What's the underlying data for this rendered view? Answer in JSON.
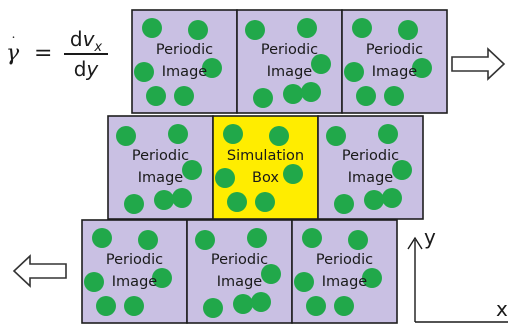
{
  "equation": {
    "lhs_symbol": "γ",
    "lhs_dot": "˙",
    "equals": "=",
    "num_d": "d",
    "num_v": "v",
    "num_sub": "x",
    "den_d": "d",
    "den_y": "y"
  },
  "cells": {
    "periodic_line1": "Periodic",
    "periodic_line2": "Image",
    "sim_line1": "Simulation",
    "sim_line2": "Box"
  },
  "axes": {
    "y": "y",
    "x": "x"
  },
  "colors": {
    "periodic_fill": "#c9c0e3",
    "simulation_fill": "#ffed00",
    "particle": "#21a84a",
    "border": "#1e1e1e"
  },
  "icons": {
    "right_arrow": "shear-right-arrow-icon",
    "left_arrow": "shear-left-arrow-icon"
  }
}
